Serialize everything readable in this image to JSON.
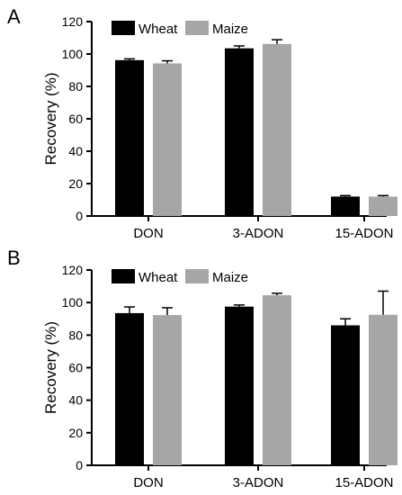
{
  "chart_data": [
    {
      "type": "bar",
      "panel": "A",
      "ylabel": "Recovery (%)",
      "xlabel": "",
      "ylim": [
        0,
        120
      ],
      "yticks": [
        0,
        20,
        40,
        60,
        80,
        100,
        120
      ],
      "categories": [
        "DON",
        "3-ADON",
        "15-ADON"
      ],
      "series": [
        {
          "name": "Wheat",
          "values": [
            96.2,
            103.5,
            12.0
          ],
          "errors": [
            0.8,
            1.5,
            0.6
          ],
          "color": "#000000"
        },
        {
          "name": "Maize",
          "values": [
            94.2,
            106.2,
            12.0
          ],
          "errors": [
            1.6,
            2.6,
            0.6
          ],
          "color": "#a6a6a8"
        }
      ],
      "legend": "top-left",
      "grid": false
    },
    {
      "type": "bar",
      "panel": "B",
      "ylabel": "Recovery (%)",
      "xlabel": "",
      "ylim": [
        0,
        120
      ],
      "yticks": [
        0,
        20,
        40,
        60,
        80,
        100,
        120
      ],
      "categories": [
        "DON",
        "3-ADON",
        "15-ADON"
      ],
      "series": [
        {
          "name": "Wheat",
          "values": [
            93.5,
            97.5,
            86.0
          ],
          "errors": [
            3.8,
            1.0,
            4.0
          ],
          "color": "#000000"
        },
        {
          "name": "Maize",
          "values": [
            92.3,
            104.5,
            92.5
          ],
          "errors": [
            4.5,
            1.2,
            14.5
          ],
          "color": "#a6a6a8"
        }
      ],
      "legend": "top-left",
      "grid": false
    }
  ]
}
